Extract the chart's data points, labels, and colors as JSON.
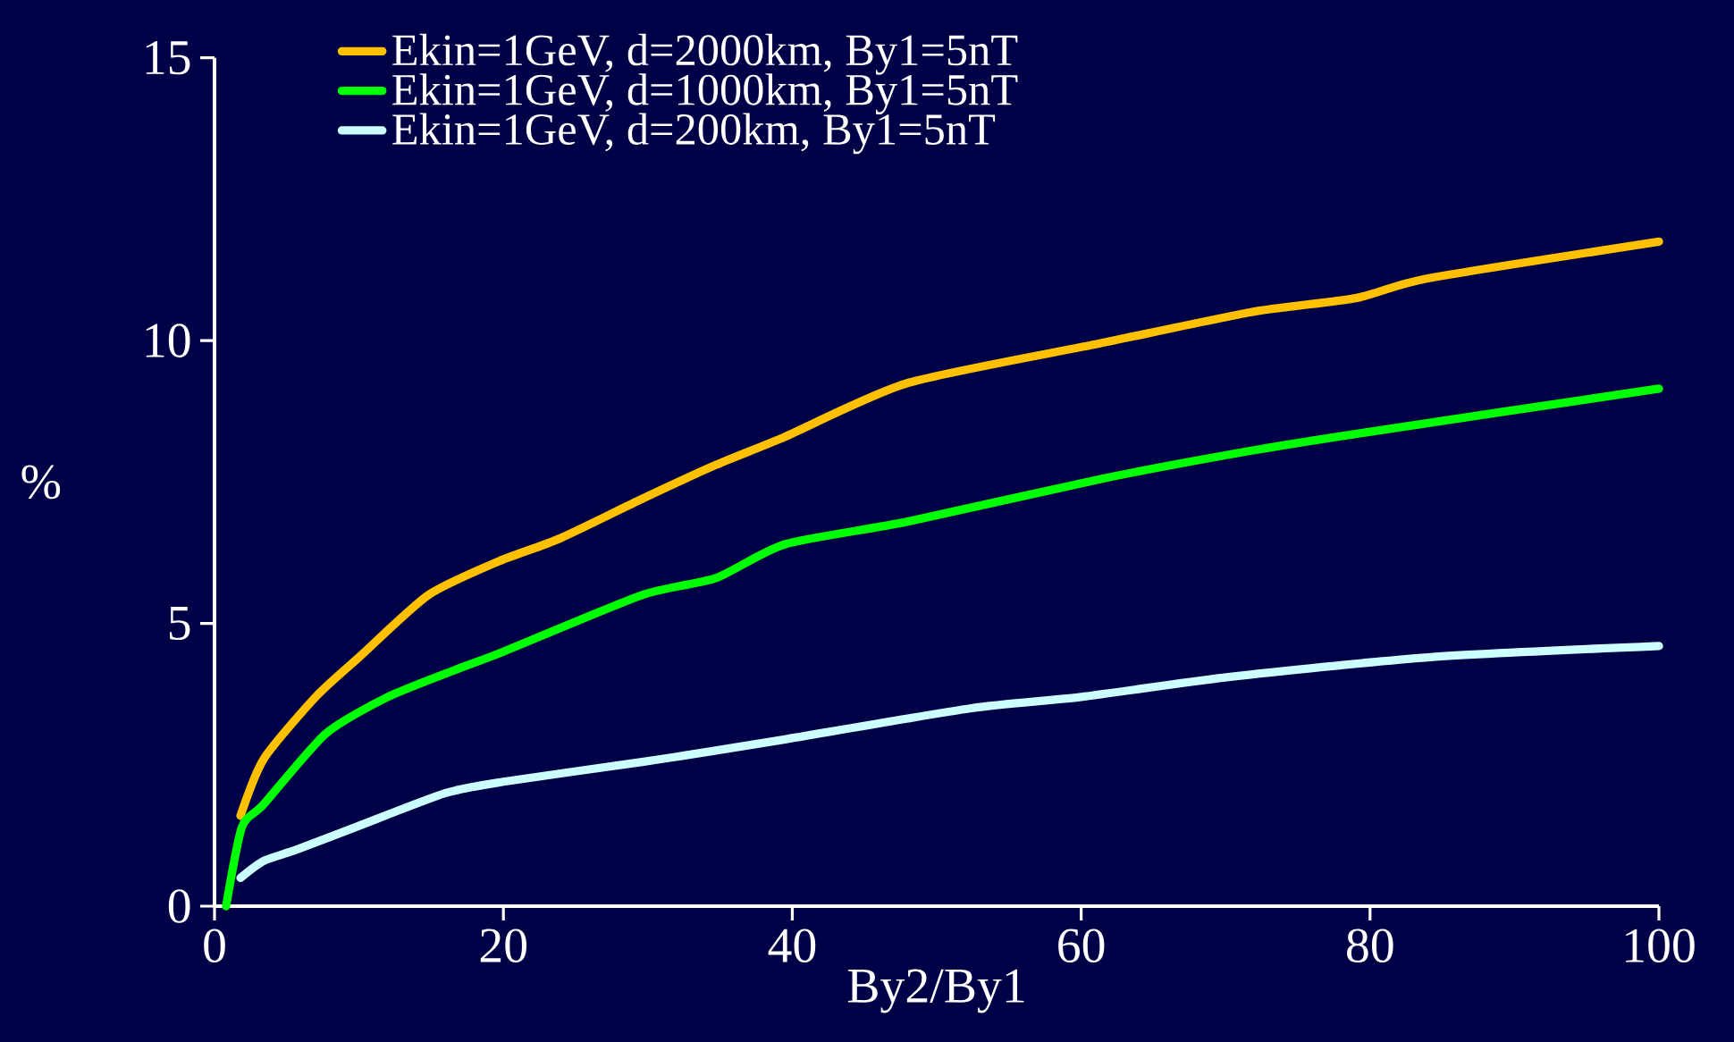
{
  "chart_data": {
    "type": "line",
    "xlabel": "By2/By1",
    "ylabel": "%",
    "xlim": [
      0,
      100
    ],
    "ylim": [
      0,
      15
    ],
    "xticks": [
      0,
      20,
      40,
      60,
      80,
      100
    ],
    "yticks": [
      0,
      5,
      10,
      15
    ],
    "grid": false,
    "legend": "top",
    "marker": "none",
    "line_style": "solid",
    "series": [
      {
        "name": "Ekin=1GeV, d=2000km,  By1=5nT",
        "color": "#ffc000",
        "x": [
          1.8,
          3.4,
          7,
          10,
          14.8,
          19.7,
          23.9,
          29.6,
          34.7,
          39.5,
          48,
          61.3,
          71.7,
          79,
          84,
          100
        ],
        "values": [
          1.6,
          2.6,
          3.7,
          4.4,
          5.5,
          6.1,
          6.5,
          7.2,
          7.8,
          8.3,
          9.25,
          9.95,
          10.5,
          10.75,
          11.1,
          11.75
        ]
      },
      {
        "name": "Ekin=1GeV, d=1000km,  By1=5nT",
        "color": "#00ff00",
        "x": [
          0.8,
          1.9,
          3.4,
          7.7,
          12,
          16.9,
          20,
          29.6,
          34.7,
          39.5,
          48,
          61.3,
          71.7,
          79,
          100
        ],
        "values": [
          0,
          1.4,
          1.8,
          3.05,
          3.7,
          4.2,
          4.5,
          5.5,
          5.8,
          6.4,
          6.8,
          7.55,
          8.05,
          8.35,
          9.15
        ]
      },
      {
        "name": "Ekin=1GeV, d=200km,  By1=5nT",
        "color": "#ccffff",
        "x": [
          1.8,
          3.4,
          5.7,
          9.8,
          16,
          20,
          29.6,
          34.7,
          39.5,
          52.4,
          60,
          70.2,
          84,
          100
        ],
        "values": [
          0.5,
          0.8,
          1.0,
          1.4,
          2.0,
          2.2,
          2.55,
          2.75,
          2.95,
          3.5,
          3.7,
          4.05,
          4.4,
          4.6
        ]
      }
    ]
  }
}
